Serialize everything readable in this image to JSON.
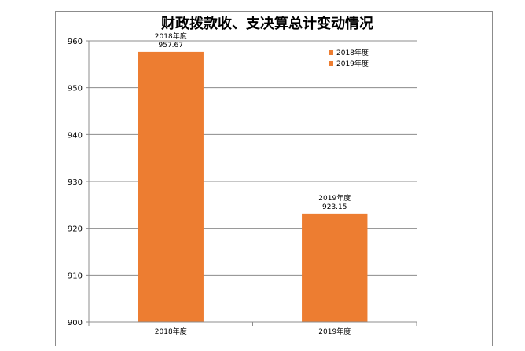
{
  "chart_data": {
    "type": "bar",
    "title": "财政拨款收、支决算总计变动情况",
    "categories": [
      "2018年度",
      "2019年度"
    ],
    "values": [
      957.67,
      923.15
    ],
    "data_labels": [
      {
        "series": "2018年度",
        "value": "957.67"
      },
      {
        "series": "2019年度",
        "value": "923.15"
      }
    ],
    "ylim": [
      900,
      960
    ],
    "yticks": [
      900,
      910,
      920,
      930,
      940,
      950,
      960
    ],
    "legend": [
      "2018年度",
      "2019年度"
    ],
    "legend_position": "top-right",
    "grid": true,
    "bar_color": "#ED7D31",
    "legend_swatch_color": "#ED7D31"
  }
}
